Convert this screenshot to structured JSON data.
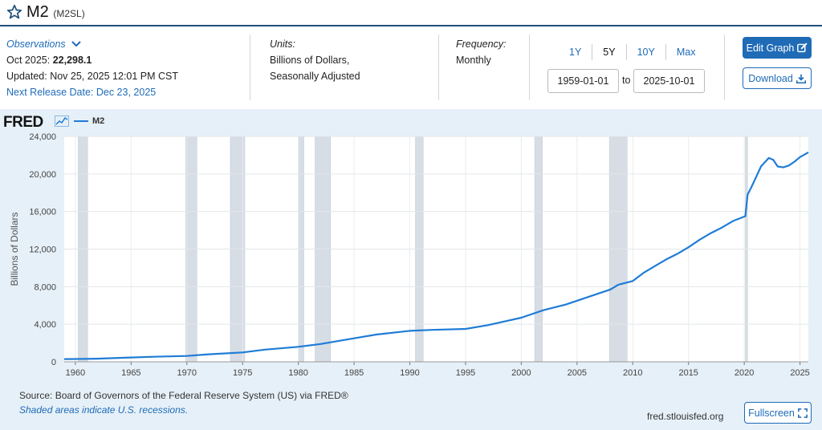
{
  "header": {
    "title": "M2",
    "series_id": "(M2SL)"
  },
  "observations": {
    "link_label": "Observations",
    "period": "Oct 2025:",
    "value": "22,298.1",
    "updated": "Updated: Nov 25, 2025 12:01 PM CST",
    "next_release": "Next Release Date: Dec 23, 2025"
  },
  "units": {
    "label": "Units:",
    "line1": "Billions of Dollars,",
    "line2": "Seasonally Adjusted"
  },
  "frequency": {
    "label": "Frequency:",
    "value": "Monthly"
  },
  "range": {
    "buttons": [
      "1Y",
      "5Y",
      "10Y",
      "Max"
    ],
    "start": "1959-01-01",
    "to_label": "to",
    "end": "2025-10-01"
  },
  "actions": {
    "edit_label": "Edit Graph",
    "download_label": "Download",
    "fullscreen_label": "Fullscreen"
  },
  "footer": {
    "source": "Source: Board of Governors of the Federal Reserve System (US) via FRED®",
    "shaded_note": "Shaded areas indicate U.S. recessions.",
    "site": "fred.stlouisfed.org"
  },
  "colors": {
    "line": "#1f7cd6",
    "recession": "#d6dde4",
    "accent": "#1f6bb6",
    "panel": "#e6f0f8"
  },
  "chart_data": {
    "type": "line",
    "brand": "FRED",
    "legend": [
      "M2"
    ],
    "ylabel": "Billions of Dollars",
    "xlim": [
      1959.0,
      2025.75
    ],
    "ylim": [
      0,
      24000
    ],
    "yticks": [
      0,
      4000,
      8000,
      12000,
      16000,
      20000,
      24000
    ],
    "ytick_labels": [
      "0",
      "4,000",
      "8,000",
      "12,000",
      "16,000",
      "20,000",
      "24,000"
    ],
    "xticks": [
      1960,
      1965,
      1970,
      1975,
      1980,
      1985,
      1990,
      1995,
      2000,
      2005,
      2010,
      2015,
      2020,
      2025
    ],
    "recessions": [
      [
        1960.25,
        1961.1
      ],
      [
        1969.9,
        1970.9
      ],
      [
        1973.9,
        1975.2
      ],
      [
        1980.0,
        1980.5
      ],
      [
        1981.5,
        1982.9
      ],
      [
        1990.5,
        1991.2
      ],
      [
        2001.2,
        2001.9
      ],
      [
        2007.9,
        2009.5
      ],
      [
        2020.1,
        2020.3
      ]
    ],
    "series": [
      {
        "name": "M2",
        "x": [
          1959.0,
          1960,
          1962,
          1965,
          1967,
          1970,
          1972,
          1975,
          1977,
          1980,
          1982,
          1985,
          1987,
          1990,
          1992,
          1995,
          1997,
          2000,
          2002,
          2004,
          2006,
          2008,
          2008.7,
          2009,
          2010,
          2011,
          2012,
          2013,
          2014,
          2015,
          2016,
          2017,
          2018,
          2019,
          2020.1,
          2020.3,
          2020.6,
          2021,
          2021.5,
          2022.2,
          2022.6,
          2023,
          2023.5,
          2024,
          2024.5,
          2025,
          2025.75
        ],
        "y": [
          287,
          300,
          335,
          460,
          540,
          620,
          800,
          1000,
          1300,
          1600,
          1900,
          2500,
          2900,
          3300,
          3400,
          3500,
          3900,
          4700,
          5500,
          6100,
          6900,
          7700,
          8200,
          8300,
          8600,
          9500,
          10200,
          10900,
          11500,
          12200,
          13000,
          13700,
          14300,
          15000,
          15500,
          17800,
          18500,
          19500,
          20800,
          21700,
          21500,
          20800,
          20700,
          20900,
          21300,
          21800,
          22298
        ]
      }
    ]
  }
}
